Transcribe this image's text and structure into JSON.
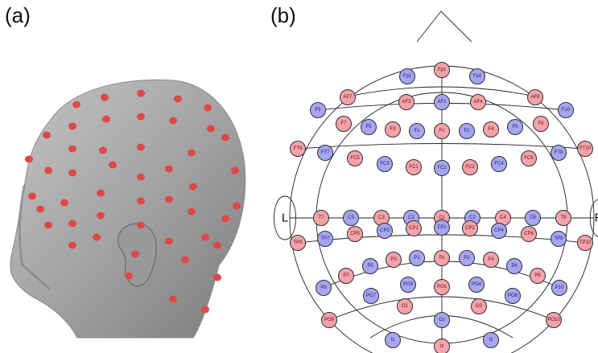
{
  "panel_labels": {
    "a": "(a)",
    "b": "(b)"
  },
  "side_labels": {
    "left": "L",
    "right": "R"
  },
  "colors": {
    "pink": "#f5a3a8",
    "blue": "#a5a6ee",
    "outline": "#2e2e3a",
    "text": "#333333",
    "photo_marker": "#e04848",
    "skin": "#a9a9a9"
  },
  "electrodes": [
    {
      "name": "Fp1",
      "color": "blue"
    },
    {
      "name": "Fpz",
      "color": "pink"
    },
    {
      "name": "Fp2",
      "color": "blue"
    },
    {
      "name": "AF7",
      "color": "pink"
    },
    {
      "name": "AF3",
      "color": "pink"
    },
    {
      "name": "AFz",
      "color": "blue"
    },
    {
      "name": "AF4",
      "color": "pink"
    },
    {
      "name": "AF8",
      "color": "pink"
    },
    {
      "name": "F9",
      "color": "blue"
    },
    {
      "name": "F7",
      "color": "pink"
    },
    {
      "name": "F5",
      "color": "blue"
    },
    {
      "name": "F3",
      "color": "pink"
    },
    {
      "name": "F1",
      "color": "blue"
    },
    {
      "name": "Fz",
      "color": "pink"
    },
    {
      "name": "F2",
      "color": "blue"
    },
    {
      "name": "F4",
      "color": "pink"
    },
    {
      "name": "F6",
      "color": "blue"
    },
    {
      "name": "F8",
      "color": "pink"
    },
    {
      "name": "F10",
      "color": "blue"
    },
    {
      "name": "FT9",
      "color": "pink"
    },
    {
      "name": "FT7",
      "color": "blue"
    },
    {
      "name": "FC5",
      "color": "pink"
    },
    {
      "name": "FC3",
      "color": "blue"
    },
    {
      "name": "FC1",
      "color": "pink"
    },
    {
      "name": "FCz",
      "color": "blue"
    },
    {
      "name": "FC2",
      "color": "pink"
    },
    {
      "name": "FC4",
      "color": "blue"
    },
    {
      "name": "FC6",
      "color": "pink"
    },
    {
      "name": "FT8",
      "color": "blue"
    },
    {
      "name": "FT10",
      "color": "pink"
    },
    {
      "name": "T7",
      "color": "pink"
    },
    {
      "name": "C5",
      "color": "blue"
    },
    {
      "name": "C3",
      "color": "pink"
    },
    {
      "name": "C1",
      "color": "blue"
    },
    {
      "name": "Cz",
      "color": "pink"
    },
    {
      "name": "C2",
      "color": "blue"
    },
    {
      "name": "C4",
      "color": "pink"
    },
    {
      "name": "C6",
      "color": "blue"
    },
    {
      "name": "T8",
      "color": "pink"
    },
    {
      "name": "TP9",
      "color": "pink"
    },
    {
      "name": "TP7",
      "color": "blue"
    },
    {
      "name": "CP5",
      "color": "pink"
    },
    {
      "name": "CP3",
      "color": "blue"
    },
    {
      "name": "CP1",
      "color": "pink"
    },
    {
      "name": "CPz",
      "color": "blue"
    },
    {
      "name": "CP2",
      "color": "pink"
    },
    {
      "name": "CP4",
      "color": "blue"
    },
    {
      "name": "CP6",
      "color": "pink"
    },
    {
      "name": "TP8",
      "color": "blue"
    },
    {
      "name": "TP10",
      "color": "pink"
    },
    {
      "name": "P7",
      "color": "pink"
    },
    {
      "name": "P5",
      "color": "blue"
    },
    {
      "name": "P3",
      "color": "pink"
    },
    {
      "name": "P1",
      "color": "blue"
    },
    {
      "name": "Pz",
      "color": "pink"
    },
    {
      "name": "P2",
      "color": "blue"
    },
    {
      "name": "P4",
      "color": "pink"
    },
    {
      "name": "P6",
      "color": "blue"
    },
    {
      "name": "P8",
      "color": "pink"
    },
    {
      "name": "P9",
      "color": "blue"
    },
    {
      "name": "PO7",
      "color": "blue"
    },
    {
      "name": "PO3",
      "color": "blue"
    },
    {
      "name": "POz",
      "color": "pink"
    },
    {
      "name": "PO4",
      "color": "blue"
    },
    {
      "name": "PO8",
      "color": "blue"
    },
    {
      "name": "P10",
      "color": "blue"
    },
    {
      "name": "PO9",
      "color": "pink"
    },
    {
      "name": "O1",
      "color": "pink"
    },
    {
      "name": "Oz",
      "color": "blue"
    },
    {
      "name": "O2",
      "color": "pink"
    },
    {
      "name": "PO10",
      "color": "pink"
    },
    {
      "name": "I1",
      "color": "blue"
    },
    {
      "name": "Iz",
      "color": "pink"
    },
    {
      "name": "I2",
      "color": "blue"
    }
  ]
}
